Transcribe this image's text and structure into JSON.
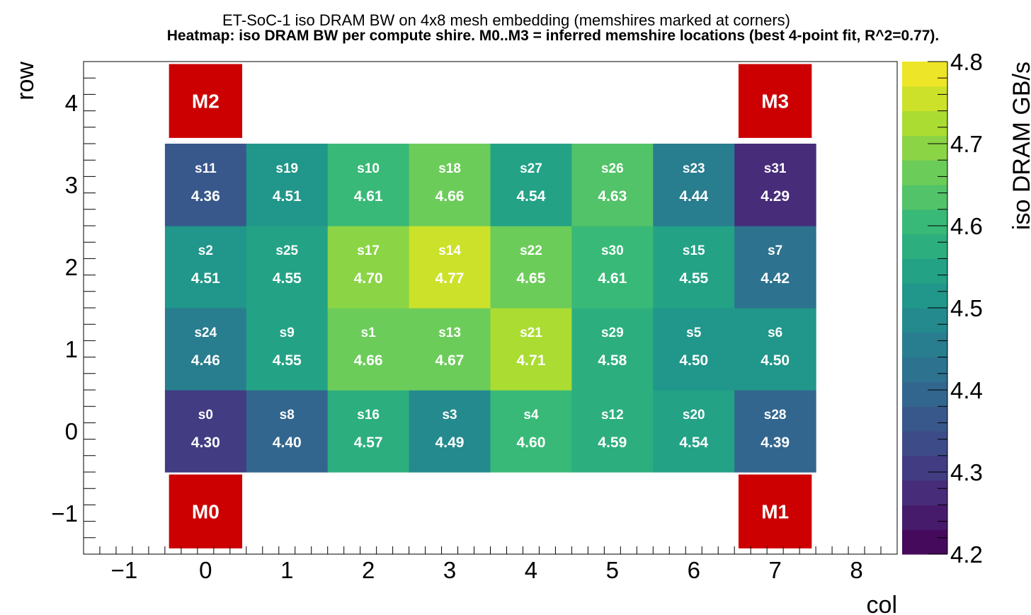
{
  "chart_data": {
    "type": "heatmap",
    "title": "ET-SoC-1 iso DRAM BW on 4x8 mesh embedding  (memshires marked at corners)",
    "subtitle": "Heatmap: iso DRAM BW per compute shire.  M0..M3 = inferred memshire locations (best 4-point fit, R^2=0.77).",
    "xlabel": "col",
    "ylabel": "row",
    "colorbar_label": "iso DRAM GB/s",
    "xlim": [
      -1.5,
      8.5
    ],
    "ylim": [
      -1.5,
      4.5
    ],
    "x_ticks": [
      -1,
      0,
      1,
      2,
      3,
      4,
      5,
      6,
      7,
      8
    ],
    "x_tick_labels": [
      "−1",
      "0",
      "1",
      "2",
      "3",
      "4",
      "5",
      "6",
      "7",
      "8"
    ],
    "y_ticks": [
      -1,
      0,
      1,
      2,
      3,
      4
    ],
    "y_tick_labels": [
      "−1",
      "0",
      "1",
      "2",
      "3",
      "4"
    ],
    "zlim": [
      4.2,
      4.8
    ],
    "colorbar_ticks": [
      4.2,
      4.3,
      4.4,
      4.5,
      4.6,
      4.7,
      4.8
    ],
    "colorbar_tick_labels": [
      "4.2",
      "4.3",
      "4.4",
      "4.5",
      "4.6",
      "4.7",
      "4.8"
    ],
    "colormap": "viridis",
    "colorbar_bins": 20,
    "grid": false,
    "cells": [
      {
        "col": 0,
        "row": 0,
        "name": "s0",
        "value": 4.3,
        "label": "4.30"
      },
      {
        "col": 1,
        "row": 0,
        "name": "s8",
        "value": 4.4,
        "label": "4.40"
      },
      {
        "col": 2,
        "row": 0,
        "name": "s16",
        "value": 4.57,
        "label": "4.57"
      },
      {
        "col": 3,
        "row": 0,
        "name": "s3",
        "value": 4.49,
        "label": "4.49"
      },
      {
        "col": 4,
        "row": 0,
        "name": "s4",
        "value": 4.6,
        "label": "4.60"
      },
      {
        "col": 5,
        "row": 0,
        "name": "s12",
        "value": 4.59,
        "label": "4.59"
      },
      {
        "col": 6,
        "row": 0,
        "name": "s20",
        "value": 4.54,
        "label": "4.54"
      },
      {
        "col": 7,
        "row": 0,
        "name": "s28",
        "value": 4.39,
        "label": "4.39"
      },
      {
        "col": 0,
        "row": 1,
        "name": "s24",
        "value": 4.46,
        "label": "4.46"
      },
      {
        "col": 1,
        "row": 1,
        "name": "s9",
        "value": 4.55,
        "label": "4.55"
      },
      {
        "col": 2,
        "row": 1,
        "name": "s1",
        "value": 4.66,
        "label": "4.66"
      },
      {
        "col": 3,
        "row": 1,
        "name": "s13",
        "value": 4.67,
        "label": "4.67"
      },
      {
        "col": 4,
        "row": 1,
        "name": "s21",
        "value": 4.71,
        "label": "4.71"
      },
      {
        "col": 5,
        "row": 1,
        "name": "s29",
        "value": 4.58,
        "label": "4.58"
      },
      {
        "col": 6,
        "row": 1,
        "name": "s5",
        "value": 4.5,
        "label": "4.50"
      },
      {
        "col": 7,
        "row": 1,
        "name": "s6",
        "value": 4.5,
        "label": "4.50"
      },
      {
        "col": 0,
        "row": 2,
        "name": "s2",
        "value": 4.51,
        "label": "4.51"
      },
      {
        "col": 1,
        "row": 2,
        "name": "s25",
        "value": 4.55,
        "label": "4.55"
      },
      {
        "col": 2,
        "row": 2,
        "name": "s17",
        "value": 4.7,
        "label": "4.70"
      },
      {
        "col": 3,
        "row": 2,
        "name": "s14",
        "value": 4.77,
        "label": "4.77"
      },
      {
        "col": 4,
        "row": 2,
        "name": "s22",
        "value": 4.65,
        "label": "4.65"
      },
      {
        "col": 5,
        "row": 2,
        "name": "s30",
        "value": 4.61,
        "label": "4.61"
      },
      {
        "col": 6,
        "row": 2,
        "name": "s15",
        "value": 4.55,
        "label": "4.55"
      },
      {
        "col": 7,
        "row": 2,
        "name": "s7",
        "value": 4.42,
        "label": "4.42"
      },
      {
        "col": 0,
        "row": 3,
        "name": "s11",
        "value": 4.36,
        "label": "4.36"
      },
      {
        "col": 1,
        "row": 3,
        "name": "s19",
        "value": 4.51,
        "label": "4.51"
      },
      {
        "col": 2,
        "row": 3,
        "name": "s10",
        "value": 4.61,
        "label": "4.61"
      },
      {
        "col": 3,
        "row": 3,
        "name": "s18",
        "value": 4.66,
        "label": "4.66"
      },
      {
        "col": 4,
        "row": 3,
        "name": "s27",
        "value": 4.54,
        "label": "4.54"
      },
      {
        "col": 5,
        "row": 3,
        "name": "s26",
        "value": 4.63,
        "label": "4.63"
      },
      {
        "col": 6,
        "row": 3,
        "name": "s23",
        "value": 4.44,
        "label": "4.44"
      },
      {
        "col": 7,
        "row": 3,
        "name": "s31",
        "value": 4.29,
        "label": "4.29"
      }
    ],
    "memshires": [
      {
        "label": "M0",
        "col": 0,
        "row": -1
      },
      {
        "label": "M1",
        "col": 7,
        "row": -1
      },
      {
        "label": "M2",
        "col": 0,
        "row": 4
      },
      {
        "label": "M3",
        "col": 7,
        "row": 4
      }
    ],
    "memshire_color": "#cc0000",
    "cell_text_color": "#ffffff"
  }
}
